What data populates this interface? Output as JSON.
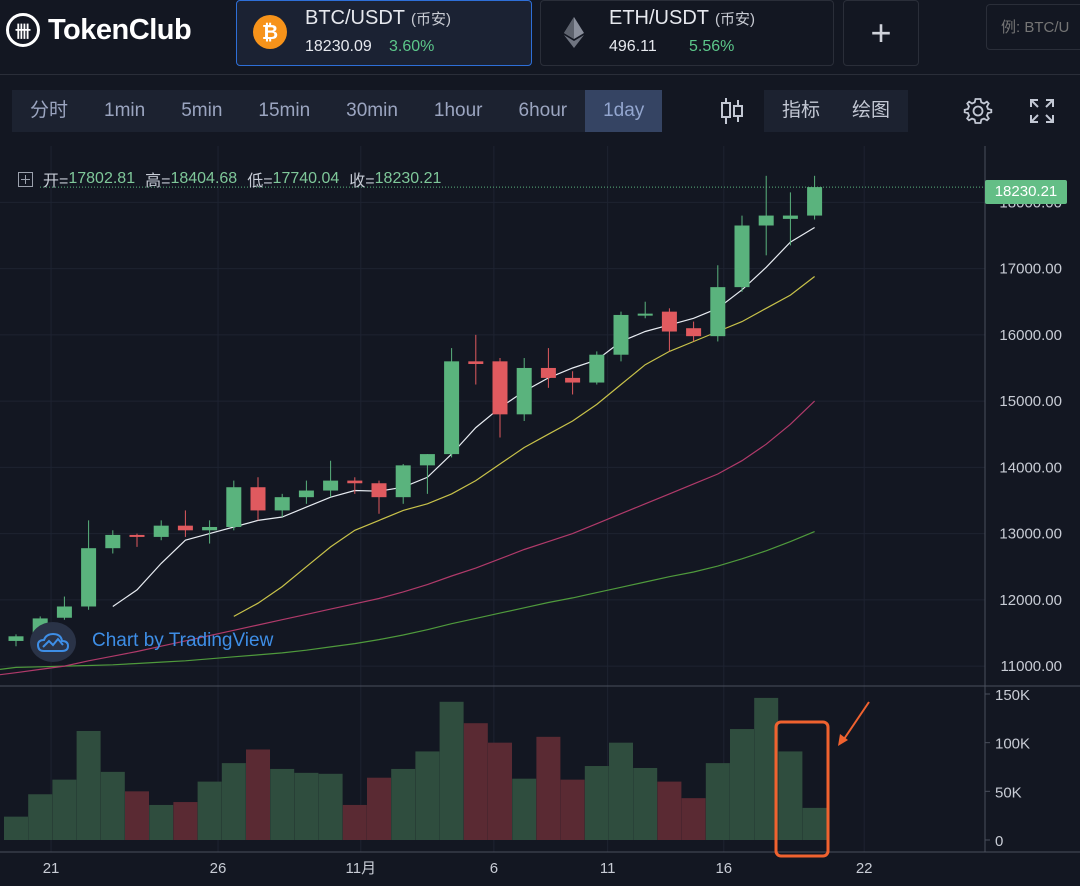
{
  "brand": {
    "logo_text": "TokenClub",
    "logo_glyph": "卌"
  },
  "pairs": [
    {
      "name": "BTC/USDT",
      "exchange": "(币安)",
      "price": "18230.09",
      "change": "3.60%",
      "icon": "bitcoin-icon",
      "color": "#f7931a"
    },
    {
      "name": "ETH/USDT",
      "exchange": "(币安)",
      "price": "496.11",
      "change": "5.56%",
      "icon": "ethereum-icon",
      "color": "#8a92b2"
    }
  ],
  "add_pair_label": "+",
  "search": {
    "placeholder": "例: BTC/U"
  },
  "timeframes": [
    "分时",
    "1min",
    "5min",
    "15min",
    "30min",
    "1hour",
    "6hour",
    "1day"
  ],
  "active_timeframe": "1day",
  "tools": {
    "indicators": "指标",
    "drawing": "绘图"
  },
  "ohlc": {
    "open_label": "开=",
    "open": "17802.81",
    "high_label": "高=",
    "high": "18404.68",
    "low_label": "低=",
    "low": "17740.04",
    "close_label": "收=",
    "close": "18230.21"
  },
  "last_price_tag": "18230.21",
  "watermark": "Chart by TradingView",
  "colors": {
    "up": "#5ab37d",
    "down": "#e05a5f",
    "vol_up": "#2f4d3e",
    "vol_down": "#5a2a33",
    "ma5": "#e8ecf2",
    "ma10": "#c8c24a",
    "ma30": "#b03a6a",
    "ma60": "#4f9a3c",
    "annotation": "#f0622f"
  },
  "chart_data": {
    "type": "candlestick",
    "x_labels": [
      "21",
      "26",
      "11月",
      "6",
      "11",
      "16",
      "22"
    ],
    "y_ticks": [
      "18000.00",
      "17000.00",
      "16000.00",
      "15000.00",
      "14000.00",
      "13000.00",
      "12000.00",
      "11000.00"
    ],
    "ylim": [
      10700,
      18850
    ],
    "candles": [
      {
        "o": 11380,
        "h": 11480,
        "l": 11300,
        "c": 11450
      },
      {
        "o": 11450,
        "h": 11750,
        "l": 11400,
        "c": 11720
      },
      {
        "o": 11730,
        "h": 12050,
        "l": 11700,
        "c": 11900
      },
      {
        "o": 11900,
        "h": 13200,
        "l": 11850,
        "c": 12780
      },
      {
        "o": 12780,
        "h": 13050,
        "l": 12700,
        "c": 12980
      },
      {
        "o": 12980,
        "h": 13000,
        "l": 12800,
        "c": 12950
      },
      {
        "o": 12950,
        "h": 13200,
        "l": 12900,
        "c": 13120
      },
      {
        "o": 13120,
        "h": 13350,
        "l": 12950,
        "c": 13050
      },
      {
        "o": 13050,
        "h": 13200,
        "l": 12850,
        "c": 13100
      },
      {
        "o": 13100,
        "h": 13800,
        "l": 13050,
        "c": 13700
      },
      {
        "o": 13700,
        "h": 13850,
        "l": 13200,
        "c": 13350
      },
      {
        "o": 13350,
        "h": 13600,
        "l": 13250,
        "c": 13550
      },
      {
        "o": 13550,
        "h": 13800,
        "l": 13450,
        "c": 13650
      },
      {
        "o": 13650,
        "h": 14100,
        "l": 13550,
        "c": 13800
      },
      {
        "o": 13800,
        "h": 13850,
        "l": 13600,
        "c": 13760
      },
      {
        "o": 13760,
        "h": 13800,
        "l": 13300,
        "c": 13550
      },
      {
        "o": 13550,
        "h": 14050,
        "l": 13450,
        "c": 14030
      },
      {
        "o": 14030,
        "h": 14200,
        "l": 13600,
        "c": 14200
      },
      {
        "o": 14200,
        "h": 15800,
        "l": 14150,
        "c": 15600
      },
      {
        "o": 15600,
        "h": 16000,
        "l": 15250,
        "c": 15560
      },
      {
        "o": 15600,
        "h": 15650,
        "l": 14450,
        "c": 14800
      },
      {
        "o": 14800,
        "h": 15650,
        "l": 14700,
        "c": 15500
      },
      {
        "o": 15500,
        "h": 15800,
        "l": 15200,
        "c": 15350
      },
      {
        "o": 15350,
        "h": 15450,
        "l": 15100,
        "c": 15280
      },
      {
        "o": 15280,
        "h": 15750,
        "l": 15250,
        "c": 15700
      },
      {
        "o": 15700,
        "h": 16350,
        "l": 15600,
        "c": 16300
      },
      {
        "o": 16300,
        "h": 16500,
        "l": 16250,
        "c": 16320
      },
      {
        "o": 16350,
        "h": 16400,
        "l": 15750,
        "c": 16050
      },
      {
        "o": 16100,
        "h": 16200,
        "l": 15900,
        "c": 15980
      },
      {
        "o": 15980,
        "h": 17050,
        "l": 15900,
        "c": 16720
      },
      {
        "o": 16720,
        "h": 17800,
        "l": 16650,
        "c": 17650
      },
      {
        "o": 17650,
        "h": 18400,
        "l": 17200,
        "c": 17800
      },
      {
        "o": 17750,
        "h": 18150,
        "l": 17350,
        "c": 17800
      },
      {
        "o": 17800,
        "h": 18400,
        "l": 17740,
        "c": 18230
      }
    ],
    "volume": [
      24,
      47,
      62,
      112,
      70,
      50,
      36,
      39,
      60,
      79,
      93,
      73,
      69,
      68,
      36,
      64,
      73,
      91,
      142,
      120,
      100,
      63,
      106,
      62,
      76,
      100,
      74,
      60,
      43,
      79,
      114,
      146,
      91,
      33
    ],
    "volume_ticks": [
      "150K",
      "100K",
      "50K",
      "0"
    ],
    "volume_max": 150,
    "ma5": [
      null,
      null,
      null,
      null,
      11900,
      12150,
      12550,
      12900,
      13000,
      13100,
      13200,
      13250,
      13400,
      13550,
      13650,
      13640,
      13700,
      13850,
      14200,
      14600,
      14900,
      15150,
      15350,
      15500,
      15620,
      15900,
      16050,
      16150,
      16250,
      16400,
      16680,
      17020,
      17400,
      17620
    ],
    "ma10": [
      null,
      null,
      null,
      null,
      null,
      null,
      null,
      null,
      null,
      11750,
      11950,
      12200,
      12500,
      12800,
      13050,
      13200,
      13350,
      13450,
      13600,
      13800,
      14050,
      14300,
      14500,
      14700,
      14950,
      15250,
      15550,
      15750,
      15900,
      16050,
      16200,
      16400,
      16600,
      16880
    ],
    "ma30": [
      10900,
      10950,
      11000,
      11080,
      11150,
      11220,
      11300,
      11380,
      11460,
      11540,
      11620,
      11700,
      11780,
      11860,
      11940,
      12020,
      12120,
      12230,
      12360,
      12480,
      12620,
      12760,
      12880,
      13000,
      13150,
      13300,
      13450,
      13600,
      13750,
      13900,
      14100,
      14350,
      14650,
      15000
    ],
    "ma60": [
      10980,
      10990,
      11000,
      11010,
      11020,
      11040,
      11060,
      11080,
      11110,
      11140,
      11170,
      11200,
      11240,
      11290,
      11340,
      11400,
      11470,
      11550,
      11640,
      11720,
      11800,
      11880,
      11960,
      12030,
      12110,
      12190,
      12270,
      12350,
      12420,
      12510,
      12620,
      12740,
      12880,
      13030
    ]
  }
}
